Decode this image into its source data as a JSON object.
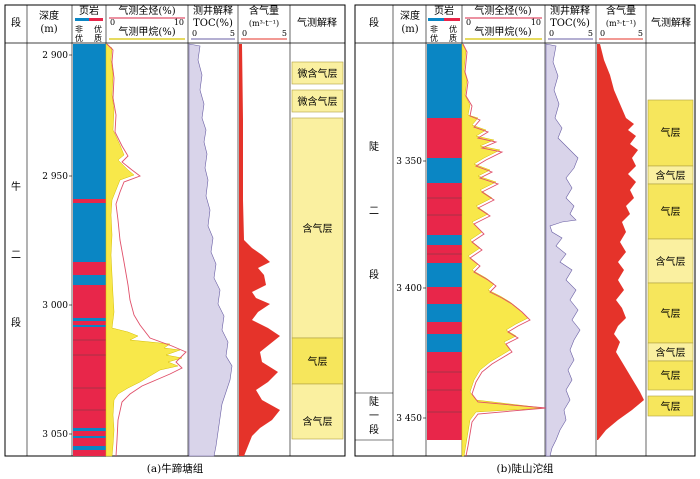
{
  "panels": [
    {
      "id": "a",
      "caption": "(a)牛蹄塘组",
      "headers": {
        "segment": "段",
        "depth": [
          "深度",
          "(m)"
        ],
        "lith_title": "页岩",
        "lith_left": [
          "非",
          "优"
        ],
        "lith_right": [
          "优",
          "质"
        ],
        "gas_total": "气测全烃(%)",
        "gas_methane": "气测甲烷(%)",
        "gas_scale": [
          "0",
          "10"
        ],
        "toc_title": [
          "测井解释",
          "TOC(%)"
        ],
        "toc_scale": [
          "0",
          "5"
        ],
        "content_title": [
          "含气量",
          "(m³·t⁻¹)"
        ],
        "content_scale": [
          "0",
          "5"
        ],
        "interp_title": "气测解释"
      },
      "segment_chars": [
        "牛",
        "二",
        "段"
      ],
      "depth_ticks": [
        "2 900",
        "2 950",
        "3 000",
        "3 050"
      ],
      "interpretation": [
        "微含气层",
        "微含气层",
        "含气层",
        "气层",
        "含气层"
      ]
    },
    {
      "id": "b",
      "caption": "(b)陡山沱组",
      "headers": {
        "segment": "段",
        "depth": [
          "深度",
          "(m)"
        ],
        "lith_title": "页岩",
        "lith_left": [
          "非",
          "优"
        ],
        "lith_right": [
          "优",
          "质"
        ],
        "gas_total": "气测全烃(%)",
        "gas_methane": "气测甲烷(%)",
        "gas_scale": [
          "0",
          "10"
        ],
        "toc_title": [
          "测井解释",
          "TOC(%)"
        ],
        "toc_scale": [
          "0",
          "5"
        ],
        "content_title": [
          "含气量",
          "(m³·t⁻¹)"
        ],
        "content_scale": [
          "0",
          "5"
        ],
        "interp_title": "气测解释"
      },
      "segment_chars_upper": [
        "陡",
        "二",
        "段"
      ],
      "segment_chars_lower": [
        "陡",
        "一",
        "段"
      ],
      "depth_ticks": [
        "3 350",
        "3 400",
        "3 450"
      ],
      "interpretation": [
        "气层",
        "含气层",
        "气层",
        "含气层",
        "气层",
        "含气层",
        "气层",
        "气层"
      ]
    }
  ],
  "colors": {
    "shale_blue": "#0a86c4",
    "shale_red": "#e8264a",
    "gas_yellow": "#f8e84a",
    "gas_red_line": "#e0506a",
    "toc_fill": "#d9d4ea",
    "toc_line": "#6a5fa4",
    "content_red": "#e5332a",
    "interp_dark": "#f6e65c",
    "interp_light": "#faf0a0"
  }
}
